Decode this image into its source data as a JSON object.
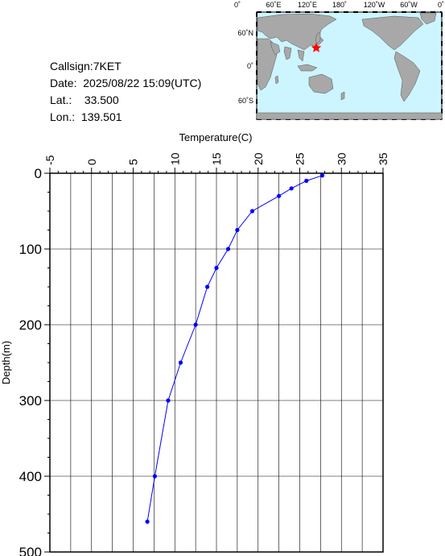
{
  "info": {
    "callsign": "Callsign:7KET",
    "date": "Date:  2025/08/22 15:09(UTC)",
    "lat_label": "Lat.:",
    "lat_value": "33.500",
    "lon_label": "Lon.:",
    "lon_value": "139.501"
  },
  "map": {
    "top_labels": [
      "0˚",
      "60˚E",
      "120˚E",
      "180˚",
      "120˚W",
      "60˚W",
      "0˚"
    ],
    "left_labels": [
      "60˚N",
      "0˚",
      "60˚S"
    ],
    "ocean_color": "#ccf5ff",
    "land_color": "#a8a8a8",
    "marker_color": "#ff0000",
    "marker_icon": "star-icon"
  },
  "chart_data": {
    "type": "line",
    "xlabel": "Temperature(C)",
    "ylabel": "Depth(m)",
    "xlim": [
      -5,
      35
    ],
    "ylim": [
      0,
      500
    ],
    "x_ticks": [
      -5,
      0,
      5,
      10,
      15,
      20,
      25,
      30,
      35
    ],
    "y_ticks": [
      0,
      100,
      200,
      300,
      400,
      500
    ],
    "grid": true,
    "series_color": "#0000ff",
    "points": [
      {
        "temp": 27.7,
        "depth": 3
      },
      {
        "temp": 25.8,
        "depth": 10
      },
      {
        "temp": 24.0,
        "depth": 20
      },
      {
        "temp": 22.5,
        "depth": 30
      },
      {
        "temp": 19.3,
        "depth": 50
      },
      {
        "temp": 17.5,
        "depth": 75
      },
      {
        "temp": 16.4,
        "depth": 100
      },
      {
        "temp": 15.0,
        "depth": 125
      },
      {
        "temp": 13.9,
        "depth": 150
      },
      {
        "temp": 12.5,
        "depth": 200
      },
      {
        "temp": 10.7,
        "depth": 250
      },
      {
        "temp": 9.2,
        "depth": 300
      },
      {
        "temp": 7.6,
        "depth": 400
      },
      {
        "temp": 6.7,
        "depth": 460
      }
    ]
  }
}
